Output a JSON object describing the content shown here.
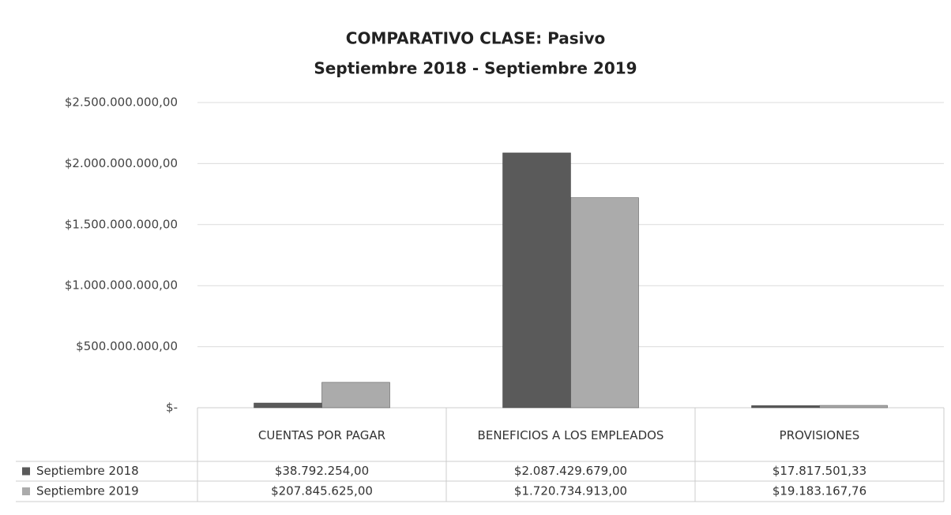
{
  "chart_data": {
    "type": "bar",
    "title": "COMPARATIVO CLASE: Pasivo",
    "subtitle": "Septiembre 2018 - Septiembre 2019",
    "categories": [
      "CUENTAS POR PAGAR",
      "BENEFICIOS A LOS EMPLEADOS",
      "PROVISIONES"
    ],
    "series": [
      {
        "name": "Septiembre 2018",
        "color": "#5a5a5a",
        "values": [
          38792254,
          2087429679,
          17817501.33
        ],
        "value_labels": [
          "$38.792.254,00",
          "$2.087.429.679,00",
          "$17.817.501,33"
        ]
      },
      {
        "name": "Septiembre 2019",
        "color": "#ababab",
        "values": [
          207845625,
          1720734913,
          19183167.76
        ],
        "value_labels": [
          "$207.845.625,00",
          "$1.720.734.913,00",
          "$19.183.167,76"
        ]
      }
    ],
    "ylim": [
      0,
      2500000000
    ],
    "yticks": [
      {
        "value": 0,
        "label": "$-"
      },
      {
        "value": 500000000,
        "label": "$500.000.000,00"
      },
      {
        "value": 1000000000,
        "label": "$1.000.000.000,00"
      },
      {
        "value": 1500000000,
        "label": "$1.500.000.000,00"
      },
      {
        "value": 2000000000,
        "label": "$2.000.000.000,00"
      },
      {
        "value": 2500000000,
        "label": "$2.500.000.000,00"
      }
    ],
    "grid": true,
    "data_table": true
  }
}
